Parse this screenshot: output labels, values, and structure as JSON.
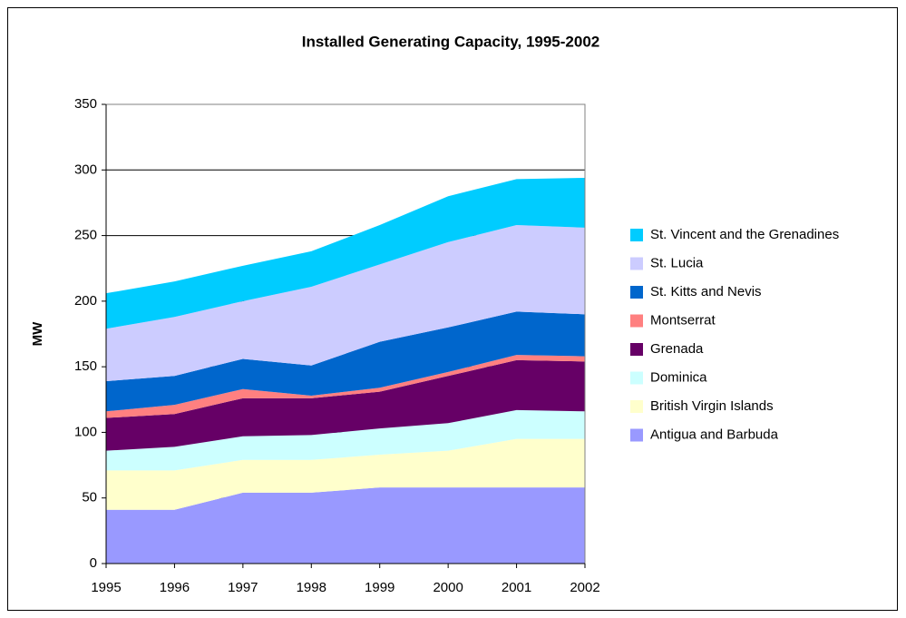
{
  "chart_data": {
    "type": "stacked_area",
    "title": "Installed Generating Capacity, 1995-2002",
    "y_label": "MW",
    "x": [
      1995,
      1996,
      1997,
      1998,
      1999,
      2000,
      2001,
      2002
    ],
    "xlim": [
      1995,
      2002
    ],
    "xticks": [
      1995,
      1996,
      1997,
      1998,
      1999,
      2000,
      2001,
      2002
    ],
    "ylim": [
      0,
      350
    ],
    "yticks": [
      0,
      50,
      100,
      150,
      200,
      250,
      300,
      350
    ],
    "grid": true,
    "legend": "right",
    "series": [
      {
        "name": "Antigua and Barbuda",
        "color": "#9999ff",
        "values": [
          41,
          41,
          54,
          54,
          58,
          58,
          58,
          58
        ]
      },
      {
        "name": "British Virgin Islands",
        "color": "#ffffcc",
        "values": [
          30,
          30,
          25,
          25,
          25,
          28,
          37,
          37
        ]
      },
      {
        "name": "Dominica",
        "color": "#ccffff",
        "values": [
          15,
          18,
          18,
          19,
          20,
          21,
          22,
          21
        ]
      },
      {
        "name": "Grenada",
        "color": "#660066",
        "values": [
          25,
          25,
          29,
          28,
          28,
          36,
          38,
          38
        ]
      },
      {
        "name": "Montserrat",
        "color": "#ff8080",
        "values": [
          5,
          7,
          7,
          2,
          3,
          3,
          4,
          4
        ]
      },
      {
        "name": "St. Kitts and Nevis",
        "color": "#0066cc",
        "values": [
          23,
          22,
          23,
          23,
          35,
          34,
          33,
          32
        ]
      },
      {
        "name": "St. Lucia",
        "color": "#ccccff",
        "values": [
          40,
          45,
          44,
          60,
          59,
          65,
          66,
          66
        ]
      },
      {
        "name": "St. Vincent and the Grenadines",
        "color": "#00ccff",
        "values": [
          27,
          27,
          27,
          27,
          30,
          35,
          35,
          38
        ]
      }
    ]
  }
}
